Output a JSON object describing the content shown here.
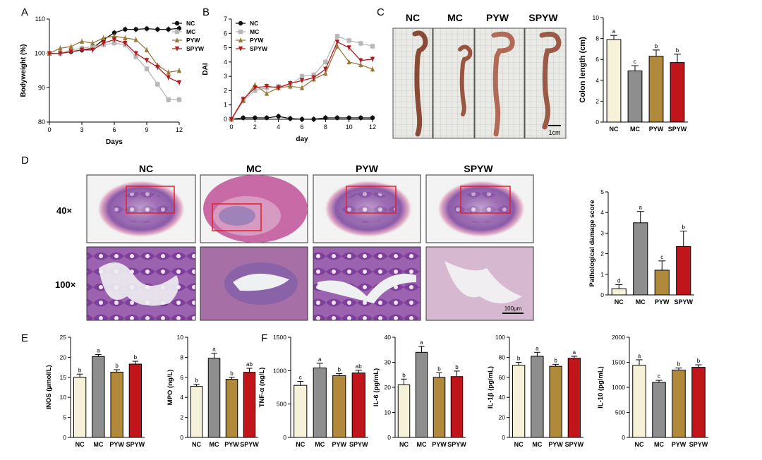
{
  "panels": {
    "A": "A",
    "B": "B",
    "C": "C",
    "D": "D",
    "E": "E",
    "F": "F"
  },
  "colors": {
    "NC": "#f6f1d9",
    "MC": "#8e8e8e",
    "PYW": "#b08a3a",
    "SPYW": "#c0161b",
    "line_NC": "#111111",
    "line_MC": "#b8b8b8",
    "line_PYW": "#9a7a3a",
    "line_SPYW": "#b01c20"
  },
  "photos": {
    "colon_labels": [
      "NC",
      "MC",
      "PYW",
      "SPYW"
    ],
    "colon_scalebar": "1cm",
    "histo_labels": [
      "NC",
      "MC",
      "PYW",
      "SPYW"
    ],
    "mag_40": "40×",
    "mag_100": "100×",
    "histo_scalebar": "100μm"
  },
  "chart_data": [
    {
      "id": "A",
      "type": "line",
      "xlabel": "Days",
      "ylabel": "Bodyweight  (%)",
      "xlim": [
        0,
        12
      ],
      "ylim": [
        80,
        110
      ],
      "xticks": [
        0,
        3,
        6,
        9,
        12
      ],
      "yticks": [
        80,
        90,
        100,
        110
      ],
      "x": [
        0,
        1,
        2,
        3,
        4,
        5,
        6,
        7,
        8,
        9,
        10,
        11,
        12
      ],
      "series": [
        {
          "name": "NC",
          "marker": "circle",
          "values": [
            100,
            100,
            100.5,
            101,
            101.5,
            104,
            106,
            107,
            107,
            107.2,
            107,
            107,
            107.3
          ]
        },
        {
          "name": "MC",
          "marker": "square",
          "values": [
            100,
            100,
            101,
            101.5,
            102,
            102.5,
            103,
            102.5,
            99,
            95.5,
            91,
            86.5,
            86.5
          ]
        },
        {
          "name": "PYW",
          "marker": "triangle",
          "values": [
            100,
            101.5,
            102,
            103.5,
            103,
            104.5,
            105,
            104.5,
            104,
            101,
            96.5,
            94.5,
            95
          ]
        },
        {
          "name": "SPYW",
          "marker": "tri_down",
          "values": [
            100,
            100,
            100.5,
            101,
            101,
            103,
            104,
            103,
            100,
            98,
            96,
            93,
            91.5
          ]
        }
      ]
    },
    {
      "id": "B",
      "type": "line",
      "xlabel": "day",
      "ylabel": "DAI",
      "xlim": [
        0,
        12
      ],
      "ylim": [
        0,
        7
      ],
      "xticks": [
        0,
        2,
        4,
        6,
        8,
        10,
        12
      ],
      "yticks": [
        0,
        1,
        2,
        3,
        4,
        5,
        6,
        7
      ],
      "x": [
        0,
        1,
        2,
        3,
        4,
        5,
        6,
        7,
        8,
        9,
        10,
        11,
        12
      ],
      "series": [
        {
          "name": "NC",
          "marker": "circle",
          "values": [
            0,
            0.1,
            0.1,
            0.1,
            0.2,
            0.05,
            0,
            0,
            0.1,
            0.1,
            0.1,
            0.1,
            0.1
          ]
        },
        {
          "name": "MC",
          "marker": "square",
          "values": [
            0,
            1.3,
            2.0,
            2.2,
            2.3,
            2.4,
            3.0,
            3.1,
            4.0,
            5.8,
            5.5,
            5.3,
            5.1
          ]
        },
        {
          "name": "PYW",
          "marker": "triangle",
          "values": [
            0,
            1.3,
            2.4,
            1.8,
            2.2,
            2.3,
            2.2,
            2.8,
            3.2,
            5.1,
            4.0,
            3.8,
            3.5
          ]
        },
        {
          "name": "SPYW",
          "marker": "tri_down",
          "values": [
            0,
            1.4,
            2.2,
            2.3,
            2.2,
            2.5,
            2.7,
            2.9,
            3.5,
            5.4,
            5.0,
            4.1,
            4.2
          ]
        }
      ]
    },
    {
      "id": "C",
      "type": "bar",
      "ylabel": "Colon length (cm)",
      "ylim": [
        0,
        10
      ],
      "yticks": [
        0,
        2,
        4,
        6,
        8,
        10
      ],
      "categories": [
        "NC",
        "MC",
        "PYW",
        "SPYW"
      ],
      "values": [
        7.9,
        4.9,
        6.3,
        5.7
      ],
      "errors": [
        0.4,
        0.5,
        0.6,
        0.8
      ],
      "letters": [
        "a",
        "c",
        "b",
        "b"
      ]
    },
    {
      "id": "D",
      "type": "bar",
      "ylabel": "Pathological damage score",
      "ylim": [
        0,
        5
      ],
      "yticks": [
        0,
        1,
        2,
        3,
        4,
        5
      ],
      "categories": [
        "NC",
        "MC",
        "PYW",
        "SPYW"
      ],
      "values": [
        0.3,
        3.5,
        1.2,
        2.35
      ],
      "errors": [
        0.2,
        0.55,
        0.45,
        0.75
      ],
      "letters": [
        "d",
        "a",
        "c",
        "b"
      ]
    },
    {
      "id": "E1",
      "type": "bar",
      "ylabel": "iNOS (μmol/L)",
      "ylim": [
        0,
        25
      ],
      "yticks": [
        0,
        5,
        10,
        15,
        20,
        25
      ],
      "categories": [
        "NC",
        "MC",
        "PYW",
        "SPYW"
      ],
      "values": [
        15,
        20.2,
        16.3,
        18.3
      ],
      "errors": [
        0.8,
        0.5,
        0.6,
        0.7
      ],
      "letters": [
        "b",
        "a",
        "b",
        "b"
      ]
    },
    {
      "id": "E2",
      "type": "bar",
      "ylabel": "MPO (ng/L)",
      "ylim": [
        0,
        10
      ],
      "yticks": [
        0,
        2,
        4,
        6,
        8,
        10
      ],
      "categories": [
        "NC",
        "MC",
        "PYW",
        "SPYW"
      ],
      "values": [
        5.1,
        7.9,
        5.8,
        6.5
      ],
      "errors": [
        0.2,
        0.5,
        0.2,
        0.4
      ],
      "letters": [
        "b",
        "a",
        "b",
        "ab"
      ]
    },
    {
      "id": "F1",
      "type": "bar",
      "ylabel": "TNF-α (ng/L)",
      "ylim": [
        0,
        1500
      ],
      "yticks": [
        0,
        500,
        1000,
        1500
      ],
      "categories": [
        "NC",
        "MC",
        "PYW",
        "SPYW"
      ],
      "values": [
        780,
        1040,
        925,
        965
      ],
      "errors": [
        60,
        70,
        30,
        40
      ],
      "letters": [
        "c",
        "a",
        "b",
        "ab"
      ]
    },
    {
      "id": "F2",
      "type": "bar",
      "ylabel": "IL-6 (pg/mL)",
      "ylim": [
        0,
        40
      ],
      "yticks": [
        0,
        10,
        20,
        30,
        40
      ],
      "categories": [
        "NC",
        "MC",
        "PYW",
        "SPYW"
      ],
      "values": [
        21,
        34,
        24,
        24.3
      ],
      "errors": [
        2.3,
        2.3,
        1.8,
        2.2
      ],
      "letters": [
        "b",
        "a",
        "b",
        "b"
      ]
    },
    {
      "id": "F3",
      "type": "bar",
      "ylabel": "IL-1β (pg/mL)",
      "ylim": [
        0,
        100
      ],
      "yticks": [
        0,
        20,
        40,
        60,
        80,
        100
      ],
      "categories": [
        "NC",
        "MC",
        "PYW",
        "SPYW"
      ],
      "values": [
        72,
        81,
        71,
        79
      ],
      "errors": [
        3,
        4,
        2,
        2
      ],
      "letters": [
        "b",
        "a",
        "b",
        "a"
      ]
    },
    {
      "id": "F4",
      "type": "bar",
      "ylabel": "IL-10 (pg/mL)",
      "ylim": [
        0,
        2000
      ],
      "yticks": [
        0,
        500,
        1000,
        1500,
        2000
      ],
      "categories": [
        "NC",
        "MC",
        "PYW",
        "SPYW"
      ],
      "values": [
        1440,
        1100,
        1345,
        1400
      ],
      "errors": [
        110,
        40,
        40,
        50
      ],
      "letters": [
        "a",
        "c",
        "b",
        "b"
      ]
    }
  ]
}
